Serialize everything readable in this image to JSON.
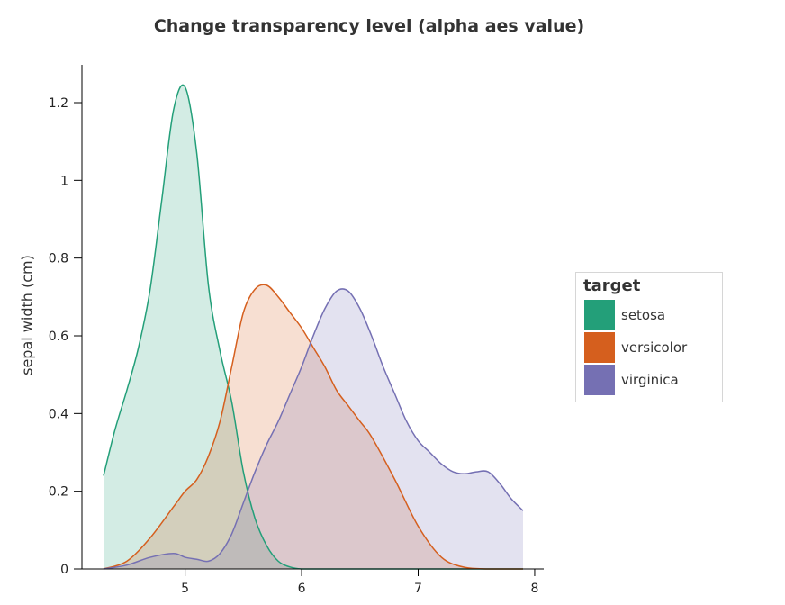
{
  "chart_data": {
    "type": "area",
    "title": "Change transparency level (alpha aes value)",
    "xlabel": "",
    "ylabel": "sepal width (cm)",
    "xlim": [
      4.3,
      7.9
    ],
    "ylim": [
      0,
      1.3
    ],
    "xticks": [
      5,
      6,
      7,
      8
    ],
    "yticks": [
      0,
      0.2,
      0.4,
      0.6,
      0.8,
      1,
      1.2
    ],
    "ytick_labels": [
      "0",
      "0.2",
      "0.4",
      "0.6",
      "0.8",
      "1",
      "1.2"
    ],
    "legend": {
      "title": "target",
      "position": "right"
    },
    "alpha": 0.2,
    "series": [
      {
        "name": "setosa",
        "color": "#239f79",
        "x": [
          4.3,
          4.4,
          4.5,
          4.6,
          4.7,
          4.8,
          4.9,
          5.0,
          5.1,
          5.2,
          5.3,
          5.4,
          5.5,
          5.6,
          5.7,
          5.8,
          5.9,
          6.0,
          6.2,
          6.5,
          7.0,
          7.5,
          7.9
        ],
        "y": [
          0.24,
          0.36,
          0.46,
          0.57,
          0.72,
          0.95,
          1.18,
          1.24,
          1.07,
          0.73,
          0.56,
          0.43,
          0.25,
          0.13,
          0.06,
          0.02,
          0.005,
          0.0,
          0.0,
          0.0,
          0.0,
          0.0,
          0.0
        ]
      },
      {
        "name": "versicolor",
        "color": "#d55f1e",
        "x": [
          4.3,
          4.5,
          4.7,
          4.9,
          5.0,
          5.1,
          5.2,
          5.3,
          5.4,
          5.5,
          5.6,
          5.7,
          5.8,
          5.9,
          6.0,
          6.1,
          6.2,
          6.3,
          6.4,
          6.5,
          6.6,
          6.8,
          7.0,
          7.2,
          7.4,
          7.6,
          7.9
        ],
        "y": [
          0.0,
          0.02,
          0.08,
          0.16,
          0.2,
          0.23,
          0.29,
          0.38,
          0.52,
          0.66,
          0.72,
          0.73,
          0.7,
          0.66,
          0.62,
          0.57,
          0.52,
          0.46,
          0.42,
          0.38,
          0.34,
          0.23,
          0.11,
          0.03,
          0.004,
          0.0,
          0.0
        ]
      },
      {
        "name": "virginica",
        "color": "#7570b3",
        "x": [
          4.3,
          4.5,
          4.7,
          4.9,
          5.0,
          5.1,
          5.2,
          5.3,
          5.4,
          5.5,
          5.6,
          5.7,
          5.8,
          5.9,
          6.0,
          6.1,
          6.2,
          6.3,
          6.4,
          6.5,
          6.6,
          6.7,
          6.8,
          6.9,
          7.0,
          7.1,
          7.2,
          7.3,
          7.4,
          7.5,
          7.6,
          7.7,
          7.8,
          7.9
        ],
        "y": [
          0.0,
          0.01,
          0.03,
          0.04,
          0.03,
          0.025,
          0.02,
          0.04,
          0.09,
          0.17,
          0.25,
          0.32,
          0.38,
          0.45,
          0.52,
          0.6,
          0.67,
          0.715,
          0.715,
          0.67,
          0.6,
          0.52,
          0.45,
          0.38,
          0.33,
          0.3,
          0.27,
          0.25,
          0.245,
          0.25,
          0.25,
          0.22,
          0.18,
          0.15
        ]
      }
    ]
  }
}
